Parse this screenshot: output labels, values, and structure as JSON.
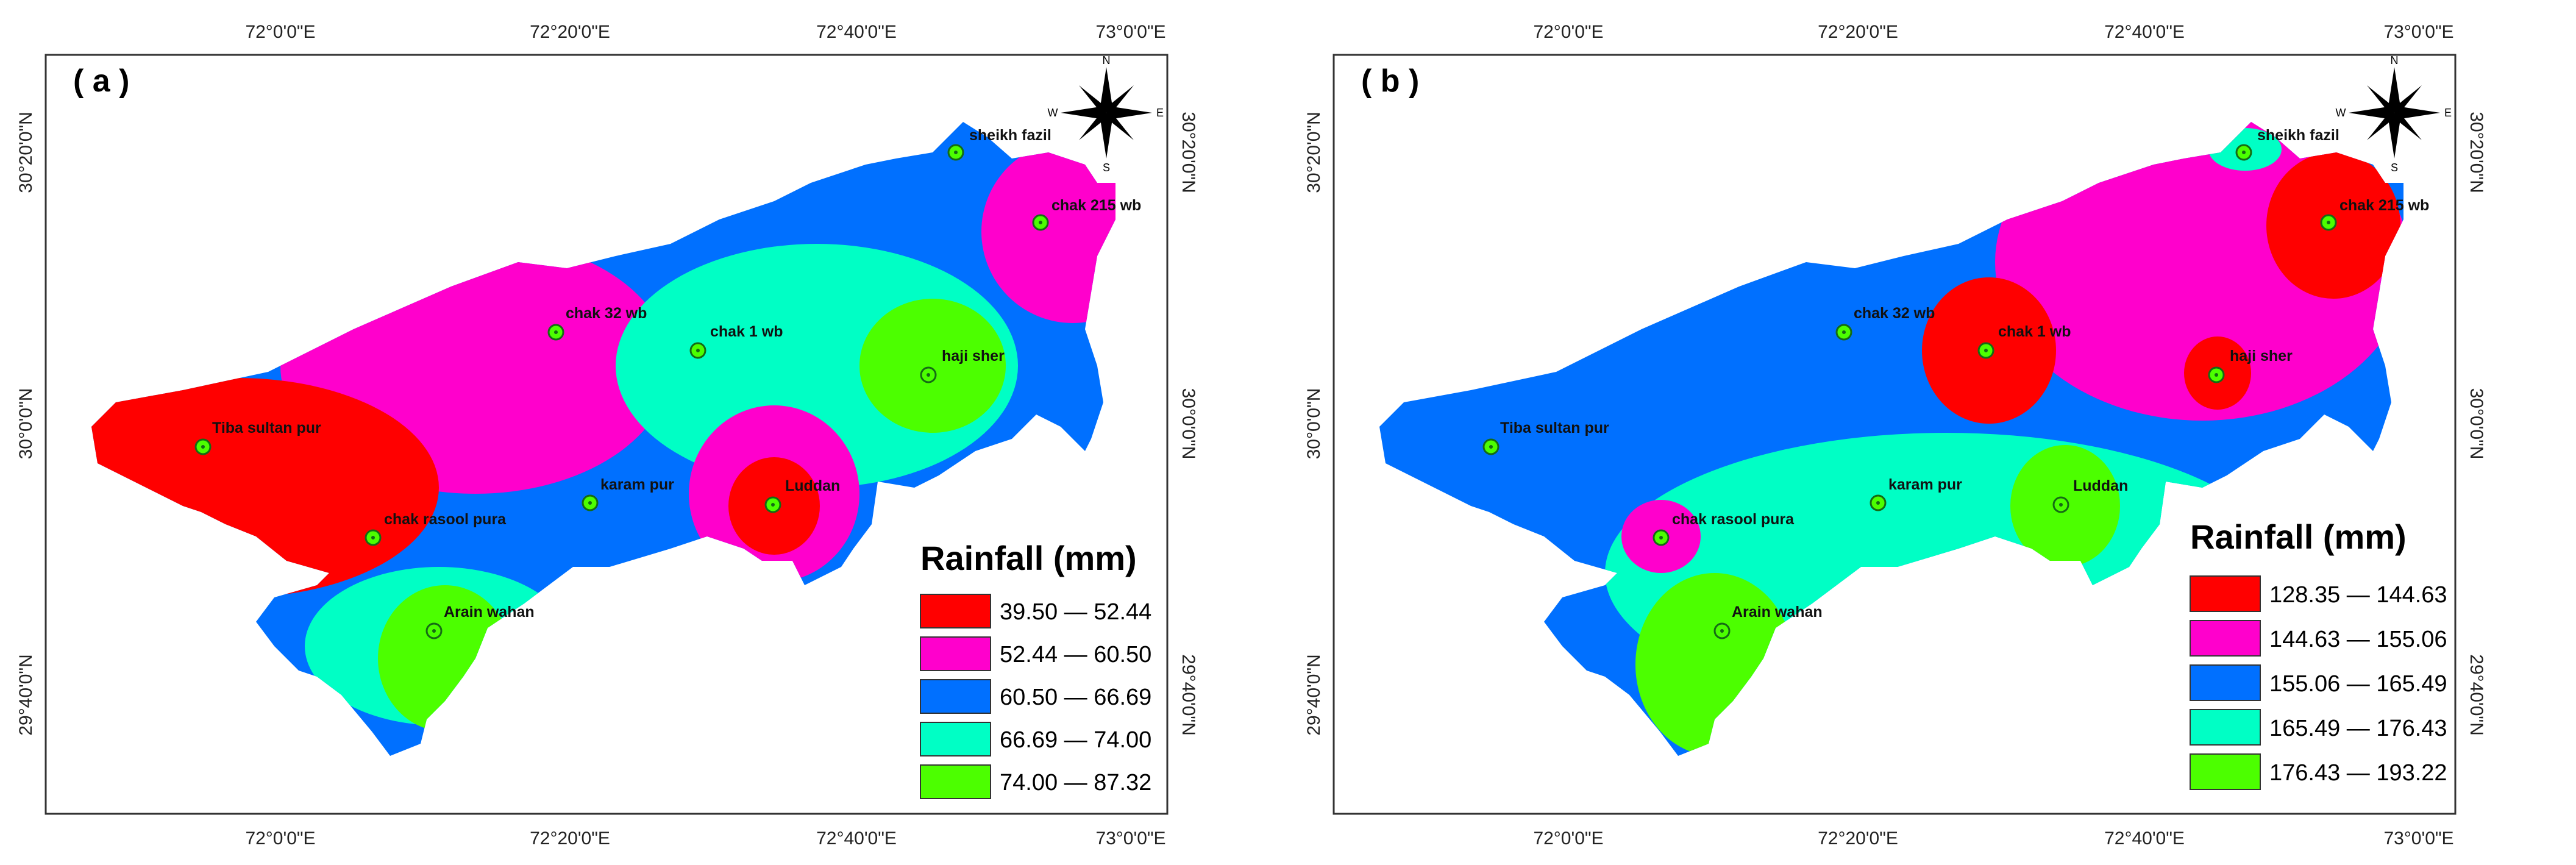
{
  "axes": {
    "top_ticks": [
      "72°0'0\"E",
      "72°20'0\"E",
      "72°40'0\"E",
      "73°0'0\"E"
    ],
    "bottom_ticks": [
      "72°0'0\"E",
      "72°20'0\"E",
      "72°40'0\"E",
      "73°0'0\"E"
    ],
    "left_ticks": [
      "30°20'0\"N",
      "30°0'0\"N",
      "29°40'0\"N"
    ],
    "right_ticks": [
      "30°20'0\"N",
      "30°0'0\"N",
      "29°40'0\"N"
    ]
  },
  "compass": {
    "north": "N",
    "south": "S",
    "east": "E",
    "west": "W"
  },
  "stations": [
    "sheikh fazil",
    "chak 215 wb",
    "chak 32 wb",
    "chak 1 wb",
    "haji sher",
    "Tiba sultan pur",
    "karam pur",
    "Luddan",
    "chak rasool pura",
    "Arain wahan"
  ],
  "panels": [
    {
      "label": "( a )",
      "legend_title": "Rainfall (mm)",
      "classes": [
        {
          "range": "39.50 — 52.44",
          "color": "#ff0000"
        },
        {
          "range": "52.44 — 60.50",
          "color": "#ff00cc"
        },
        {
          "range": "60.50 — 66.69",
          "color": "#0070ff"
        },
        {
          "range": "66.69 — 74.00",
          "color": "#00ffc5"
        },
        {
          "range": "74.00 — 87.32",
          "color": "#4cff00"
        }
      ]
    },
    {
      "label": "( b )",
      "legend_title": "Rainfall (mm)",
      "classes": [
        {
          "range": "128.35 — 144.63",
          "color": "#ff0000"
        },
        {
          "range": "144.63 — 155.06",
          "color": "#ff00cc"
        },
        {
          "range": "155.06 — 165.49",
          "color": "#0070ff"
        },
        {
          "range": "165.49 — 176.43",
          "color": "#00ffc5"
        },
        {
          "range": "176.43 — 193.22",
          "color": "#4cff00"
        }
      ]
    }
  ]
}
